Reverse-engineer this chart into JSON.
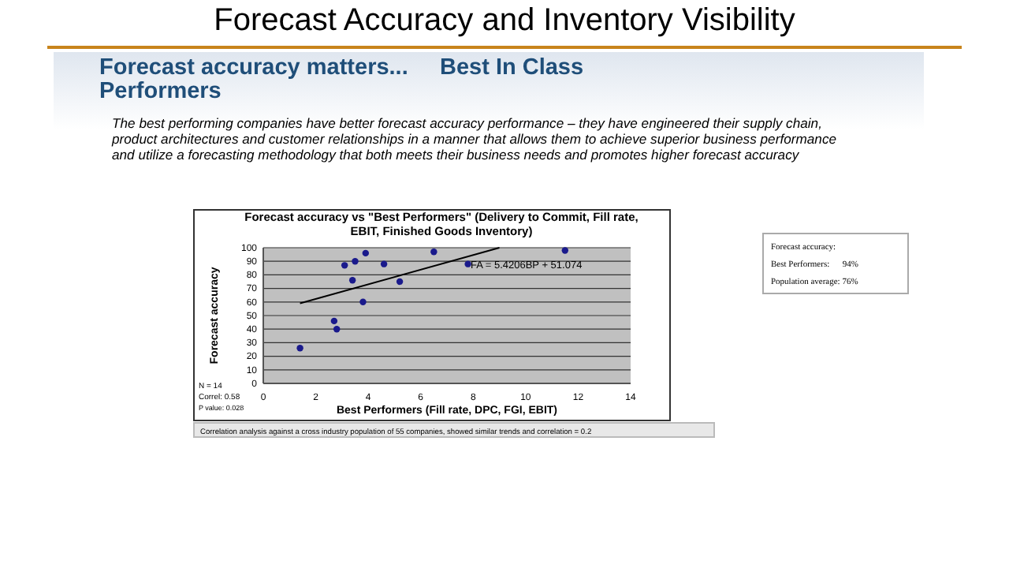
{
  "chart_data": {
    "type": "scatter",
    "title": "Forecast Accuracy and Inventory Visibility",
    "subtitle": "Forecast accuracy matters...     Best In Class Performers",
    "xlabel": "Best Performers (Fill rate, DPC, FGI, EBIT)",
    "ylabel": "Forecast accuracy",
    "xlim": [
      0,
      14
    ],
    "xticks": [
      0,
      2,
      4,
      6,
      8,
      10,
      12,
      14
    ],
    "ylim": [
      0,
      100
    ],
    "yticks": [
      0,
      10,
      20,
      30,
      40,
      50,
      60,
      70,
      80,
      90,
      100
    ],
    "grid": "y",
    "marker": "circle",
    "series": [
      {
        "color": "#1a1a8c",
        "x": [
          1.4,
          2.7,
          2.8,
          3.1,
          3.4,
          3.5,
          3.8,
          3.9,
          4.6,
          5.2,
          6.5,
          7.8,
          11.5
        ],
        "values": [
          26,
          46,
          40,
          87,
          76,
          90,
          60,
          96,
          88,
          75,
          97,
          88,
          98
        ]
      },
      {
        "type": "line",
        "color": "#000000",
        "line_style": "solid",
        "marker": "none",
        "x": [
          1.4,
          9
        ],
        "values": [
          59,
          100
        ]
      }
    ],
    "annotations": [
      "The best performing companies have better forecast accuracy performance  – they have engineered their supply chain, product architectures and customer relationships in a manner that allows them to achieve superior business performance and utilize a forecasting methodology that both meets their business needs and promotes higher forecast accuracy",
      "Forecast accuracy vs \"Best Performers\" (Delivery to Commit, Fill rate, EBIT, Finished Goods Inventory)",
      "FA = 5.4206BP + 51.074",
      "N = 14",
      "Correl: 0.58",
      "P value: 0.028",
      "Correlation analysis against a cross industry population of 55 companies, showed similar trends and correlation = 0.2",
      "Forecast accuracy:",
      "Best Performers:      94%",
      "Population average: 76%"
    ]
  }
}
